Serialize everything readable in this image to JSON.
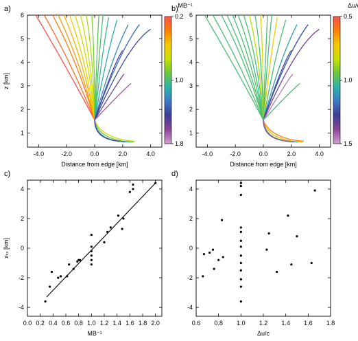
{
  "colors": {
    "colorbar_stops": [
      "#ff5050",
      "#ff7f00",
      "#f5c800",
      "#c8e000",
      "#6ac83c",
      "#29b4a8",
      "#3c78c8",
      "#3c3c96",
      "#8c4696",
      "#d2a0d2"
    ]
  },
  "chart_data": [
    {
      "panel": "a)",
      "type": "line",
      "xlabel": "Distance from edge [km]",
      "ylabel": "z [km]",
      "xlim": [
        -4.8,
        4.8
      ],
      "ylim": [
        0.4,
        6.0
      ],
      "xticks": [
        "-4.0",
        "-2.0",
        "0.0",
        "2.0",
        "4.0"
      ],
      "yticks": [
        "1",
        "2",
        "3",
        "4",
        "5",
        "6"
      ],
      "colorbar": {
        "label": "MB⁻¹",
        "range": [
          0.2,
          1.8
        ],
        "ticks": [
          "0.2",
          "1.0",
          "1.8"
        ],
        "reversed": true
      },
      "series": [
        {
          "c": 0.2,
          "x": [
            0,
            -2.0,
            -4.2
          ],
          "y": [
            1.55,
            3.8,
            6.0
          ]
        },
        {
          "c": 0.3,
          "x": [
            0,
            -1.6,
            -3.6
          ],
          "y": [
            1.55,
            3.9,
            6.0
          ]
        },
        {
          "c": 0.35,
          "x": [
            0,
            -1.2,
            -3.0
          ],
          "y": [
            1.55,
            4.0,
            6.0
          ]
        },
        {
          "c": 0.45,
          "x": [
            0,
            -1.0,
            -2.6
          ],
          "y": [
            1.55,
            4.0,
            6.0
          ]
        },
        {
          "c": 0.5,
          "x": [
            0,
            -0.8,
            -2.2
          ],
          "y": [
            1.55,
            4.1,
            6.0
          ]
        },
        {
          "c": 0.6,
          "x": [
            0,
            -0.6,
            -1.8
          ],
          "y": [
            1.55,
            4.1,
            6.0
          ]
        },
        {
          "c": 0.66,
          "x": [
            0,
            -0.4,
            -1.4
          ],
          "y": [
            1.55,
            4.2,
            6.0
          ]
        },
        {
          "c": 0.72,
          "x": [
            0,
            -0.25,
            -1.0
          ],
          "y": [
            1.55,
            4.2,
            6.0
          ]
        },
        {
          "c": 0.8,
          "x": [
            0,
            -0.1,
            -0.6
          ],
          "y": [
            1.55,
            4.3,
            6.0
          ]
        },
        {
          "c": 0.88,
          "x": [
            0,
            0.0,
            -0.2
          ],
          "y": [
            1.55,
            4.3,
            6.0
          ]
        },
        {
          "c": 0.95,
          "x": [
            0,
            0.15,
            0.3
          ],
          "y": [
            1.55,
            4.3,
            6.0
          ]
        },
        {
          "c": 1.0,
          "x": [
            0,
            0.3,
            0.6
          ],
          "y": [
            1.55,
            4.3,
            6.0
          ]
        },
        {
          "c": 1.05,
          "x": [
            0,
            0.5,
            1.0
          ],
          "y": [
            1.55,
            4.3,
            5.9
          ]
        },
        {
          "c": 1.12,
          "x": [
            0,
            0.8,
            1.6
          ],
          "y": [
            1.55,
            4.2,
            5.8
          ]
        },
        {
          "c": 1.22,
          "x": [
            0,
            1.2,
            2.4
          ],
          "y": [
            1.55,
            4.2,
            5.6
          ]
        },
        {
          "c": 1.3,
          "x": [
            0,
            1.7,
            3.2
          ],
          "y": [
            1.55,
            4.4,
            5.6
          ]
        },
        {
          "c": 1.4,
          "x": [
            0,
            2.4,
            4.0
          ],
          "y": [
            1.55,
            4.8,
            5.4
          ]
        },
        {
          "c": 1.48,
          "x": [
            0,
            1.4,
            2.0
          ],
          "y": [
            1.55,
            4.0,
            4.5
          ]
        },
        {
          "c": 1.55,
          "x": [
            0,
            1.8,
            2.1
          ],
          "y": [
            1.55,
            3.3,
            3.5
          ]
        },
        {
          "c": 1.66,
          "x": [
            0,
            2.0,
            2.6
          ],
          "y": [
            1.55,
            2.8,
            3.1
          ]
        },
        {
          "c": 0.7,
          "x": [
            0,
            0.3,
            1.5,
            2.9
          ],
          "y": [
            1.55,
            1.0,
            0.7,
            0.65
          ]
        },
        {
          "c": 0.9,
          "x": [
            0,
            0.2,
            1.3,
            2.8
          ],
          "y": [
            1.55,
            0.9,
            0.65,
            0.62
          ]
        },
        {
          "c": 1.1,
          "x": [
            0,
            0.1,
            1.0,
            2.5
          ],
          "y": [
            1.55,
            0.85,
            0.65,
            0.62
          ]
        },
        {
          "c": 1.3,
          "x": [
            0,
            0.0,
            0.8,
            2.2
          ],
          "y": [
            1.55,
            0.9,
            0.66,
            0.62
          ]
        },
        {
          "c": 1.5,
          "x": [
            0,
            0.0,
            0.6,
            1.8
          ],
          "y": [
            1.55,
            1.0,
            0.7,
            0.65
          ]
        }
      ]
    },
    {
      "panel": "b)",
      "type": "line",
      "xlabel": "Distance from edge [km]",
      "ylabel": "",
      "xlim": [
        -4.8,
        4.8
      ],
      "ylim": [
        0.4,
        6.0
      ],
      "xticks": [
        "-4.0",
        "-2.0",
        "0.0",
        "2.0",
        "4.0"
      ],
      "yticks": [
        "1",
        "2",
        "3",
        "4",
        "5",
        "6"
      ],
      "colorbar": {
        "label": "Δu/c",
        "range": [
          0.5,
          1.5
        ],
        "ticks": [
          "0.5",
          "1.0",
          "1.5"
        ],
        "reversed": true
      },
      "series": [
        {
          "c": 1.0,
          "x": [
            0,
            -2.0,
            -4.2
          ],
          "y": [
            1.55,
            3.8,
            6.0
          ]
        },
        {
          "c": 1.0,
          "x": [
            0,
            -1.6,
            -3.6
          ],
          "y": [
            1.55,
            3.9,
            6.0
          ]
        },
        {
          "c": 1.0,
          "x": [
            0,
            -1.2,
            -3.0
          ],
          "y": [
            1.55,
            4.0,
            6.0
          ]
        },
        {
          "c": 1.0,
          "x": [
            0,
            -1.0,
            -2.6
          ],
          "y": [
            1.55,
            4.0,
            6.0
          ]
        },
        {
          "c": 1.0,
          "x": [
            0,
            -0.8,
            -2.2
          ],
          "y": [
            1.55,
            4.1,
            6.0
          ]
        },
        {
          "c": 1.0,
          "x": [
            0,
            -0.6,
            -1.8
          ],
          "y": [
            1.55,
            4.1,
            6.0
          ]
        },
        {
          "c": 1.0,
          "x": [
            0,
            -0.4,
            -1.4
          ],
          "y": [
            1.55,
            4.2,
            6.0
          ]
        },
        {
          "c": 0.85,
          "x": [
            0,
            -0.25,
            -1.0
          ],
          "y": [
            1.55,
            4.2,
            6.0
          ]
        },
        {
          "c": 1.0,
          "x": [
            0,
            -0.1,
            -0.6
          ],
          "y": [
            1.55,
            4.3,
            6.0
          ]
        },
        {
          "c": 0.8,
          "x": [
            0,
            0.0,
            -0.2
          ],
          "y": [
            1.55,
            4.3,
            6.0
          ]
        },
        {
          "c": 1.0,
          "x": [
            0,
            0.15,
            0.3
          ],
          "y": [
            1.55,
            4.3,
            6.0
          ]
        },
        {
          "c": 1.0,
          "x": [
            0,
            0.3,
            0.6
          ],
          "y": [
            1.55,
            4.3,
            6.0
          ]
        },
        {
          "c": 0.72,
          "x": [
            0,
            0.5,
            1.0
          ],
          "y": [
            1.55,
            4.3,
            5.9
          ]
        },
        {
          "c": 1.0,
          "x": [
            0,
            0.8,
            1.6
          ],
          "y": [
            1.55,
            4.2,
            5.8
          ]
        },
        {
          "c": 1.1,
          "x": [
            0,
            1.2,
            2.4
          ],
          "y": [
            1.55,
            4.2,
            5.6
          ]
        },
        {
          "c": 1.25,
          "x": [
            0,
            1.7,
            3.2
          ],
          "y": [
            1.55,
            4.4,
            5.6
          ]
        },
        {
          "c": 1.35,
          "x": [
            0,
            2.4,
            4.0
          ],
          "y": [
            1.55,
            4.8,
            5.4
          ]
        },
        {
          "c": 1.25,
          "x": [
            0,
            1.4,
            2.0
          ],
          "y": [
            1.55,
            4.0,
            4.5
          ]
        },
        {
          "c": 1.45,
          "x": [
            0,
            1.8,
            2.1
          ],
          "y": [
            1.55,
            3.3,
            3.5
          ]
        },
        {
          "c": 1.0,
          "x": [
            0,
            2.0,
            2.6
          ],
          "y": [
            1.55,
            2.8,
            3.1
          ]
        },
        {
          "c": 0.6,
          "x": [
            0,
            0.3,
            1.5,
            2.9
          ],
          "y": [
            1.55,
            1.0,
            0.7,
            0.65
          ]
        },
        {
          "c": 0.7,
          "x": [
            0,
            0.2,
            1.3,
            2.8
          ],
          "y": [
            1.55,
            0.9,
            0.65,
            0.62
          ]
        },
        {
          "c": 1.0,
          "x": [
            0,
            0.1,
            1.0,
            2.5
          ],
          "y": [
            1.55,
            0.85,
            0.65,
            0.62
          ]
        },
        {
          "c": 1.2,
          "x": [
            0,
            0.0,
            0.8,
            2.2
          ],
          "y": [
            1.55,
            0.9,
            0.66,
            0.62
          ]
        },
        {
          "c": 1.4,
          "x": [
            0,
            0.0,
            0.6,
            1.8
          ],
          "y": [
            1.55,
            1.0,
            0.7,
            0.65
          ]
        }
      ]
    },
    {
      "panel": "c)",
      "type": "scatter",
      "xlabel": "MB⁻¹",
      "ylabel": "xₜₛ [km]",
      "xlim": [
        0.0,
        2.1
      ],
      "ylim": [
        -4.6,
        4.6
      ],
      "xticks": [
        "0.0",
        "0.2",
        "0.4",
        "0.6",
        "0.8",
        "1.0",
        "1.2",
        "1.4",
        "1.6",
        "1.8",
        "2.0"
      ],
      "yticks": [
        "-4",
        "-2",
        "0",
        "2",
        "4"
      ],
      "fit_line": {
        "x": [
          0.3,
          2.0
        ],
        "y": [
          -3.3,
          4.4
        ]
      },
      "points": [
        [
          0.28,
          -3.6
        ],
        [
          0.35,
          -2.6
        ],
        [
          0.38,
          -1.6
        ],
        [
          0.48,
          -2.0
        ],
        [
          0.52,
          -1.9
        ],
        [
          0.62,
          -1.9
        ],
        [
          0.65,
          -1.1
        ],
        [
          0.72,
          -1.4
        ],
        [
          0.78,
          -0.9
        ],
        [
          0.8,
          -0.8
        ],
        [
          0.82,
          -0.8
        ],
        [
          1.0,
          0.9
        ],
        [
          1.0,
          0.1
        ],
        [
          1.0,
          -0.2
        ],
        [
          1.0,
          -0.5
        ],
        [
          1.0,
          -0.8
        ],
        [
          1.0,
          -1.1
        ],
        [
          1.2,
          0.4
        ],
        [
          1.25,
          1.1
        ],
        [
          1.3,
          1.4
        ],
        [
          1.42,
          2.2
        ],
        [
          1.48,
          1.3
        ],
        [
          1.5,
          2.0
        ],
        [
          1.6,
          3.8
        ],
        [
          1.65,
          4.0
        ],
        [
          1.65,
          4.3
        ],
        [
          2.0,
          4.4
        ]
      ]
    },
    {
      "panel": "d)",
      "type": "scatter",
      "xlabel": "Δu/c",
      "ylabel": "",
      "xlim": [
        0.6,
        1.8
      ],
      "ylim": [
        -4.6,
        4.6
      ],
      "xticks": [
        "0.6",
        "0.8",
        "1.0",
        "1.2",
        "1.4",
        "1.6",
        "1.8"
      ],
      "yticks": [
        "-4",
        "-2",
        "0",
        "2",
        "4"
      ],
      "points": [
        [
          0.66,
          -1.9
        ],
        [
          0.67,
          -0.4
        ],
        [
          0.72,
          -0.3
        ],
        [
          0.75,
          -0.1
        ],
        [
          0.76,
          -1.4
        ],
        [
          0.8,
          -0.8
        ],
        [
          0.83,
          1.9
        ],
        [
          0.84,
          -0.6
        ],
        [
          1.0,
          4.4
        ],
        [
          1.0,
          4.2
        ],
        [
          1.0,
          3.6
        ],
        [
          1.0,
          1.4
        ],
        [
          1.0,
          1.1
        ],
        [
          1.0,
          0.5
        ],
        [
          1.0,
          0.1
        ],
        [
          1.0,
          -0.5
        ],
        [
          1.0,
          -1.0
        ],
        [
          1.0,
          -1.5
        ],
        [
          1.0,
          -2.1
        ],
        [
          1.0,
          -2.6
        ],
        [
          1.0,
          -3.6
        ],
        [
          1.23,
          -0.1
        ],
        [
          1.25,
          1.0
        ],
        [
          1.32,
          -1.6
        ],
        [
          1.42,
          2.2
        ],
        [
          1.45,
          -1.1
        ],
        [
          1.5,
          0.8
        ],
        [
          1.63,
          -1.0
        ],
        [
          1.66,
          3.9
        ]
      ]
    }
  ]
}
